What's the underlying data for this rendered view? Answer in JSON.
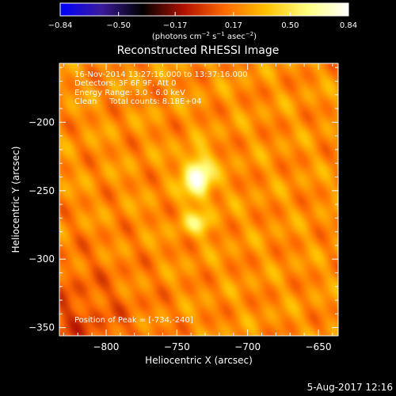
{
  "chart_data": {
    "type": "heatmap",
    "title": "Reconstructed RHESSI Image",
    "xlabel": "Heliocentric X (arcsec)",
    "ylabel": "Heliocentric Y (arcsec)",
    "xlim": [
      -833,
      -636
    ],
    "ylim": [
      -356,
      -157
    ],
    "x_ticks": [
      -800,
      -750,
      -700,
      -650
    ],
    "x_tick_labels": [
      "−800",
      "−750",
      "−700",
      "−650"
    ],
    "y_ticks": [
      -200,
      -250,
      -300,
      -350
    ],
    "y_tick_labels": [
      "−200",
      "−250",
      "−300",
      "−350"
    ],
    "colorbar": {
      "min": -0.84,
      "max": 0.84,
      "ticks": [
        -0.84,
        -0.5,
        -0.17,
        0.17,
        0.5,
        0.84
      ],
      "tick_labels": [
        "−0.84",
        "−0.50",
        "−0.17",
        "0.17",
        "0.50",
        "0.84"
      ],
      "units_pre": "(photons cm",
      "units_sup1": "−2",
      "units_mid": " s",
      "units_sup2": "−1",
      "units_mid2": " asec",
      "units_sup3": "−2",
      "units_post": ")",
      "colors": [
        "#0000ff",
        "#3a1b9c",
        "#000000",
        "#b01000",
        "#ff6a00",
        "#ffc000",
        "#ffff80",
        "#ffffff"
      ]
    },
    "sources": [
      {
        "x": -735,
        "y": -240,
        "intensity": 0.84,
        "sx": 7,
        "sy": 11
      },
      {
        "x": -736,
        "y": -274,
        "intensity": 0.5,
        "sx": 8,
        "sy": 6
      }
    ],
    "background_level": 0.22,
    "peak": [
      -734,
      -240
    ]
  },
  "annotations": {
    "line1": "16-Nov-2014 13:27:16.000 to 13:37:16.000",
    "line2": "Detectors: 3F 6F 9F, Att 0",
    "line3": "Energy Range: 3.0 - 6.0 keV",
    "line4": "Clean     Total counts: 8.18E+04",
    "peak_text": "Position of Peak = [-734,-240]"
  },
  "footer": {
    "timestamp": "5-Aug-2017 12:16"
  }
}
